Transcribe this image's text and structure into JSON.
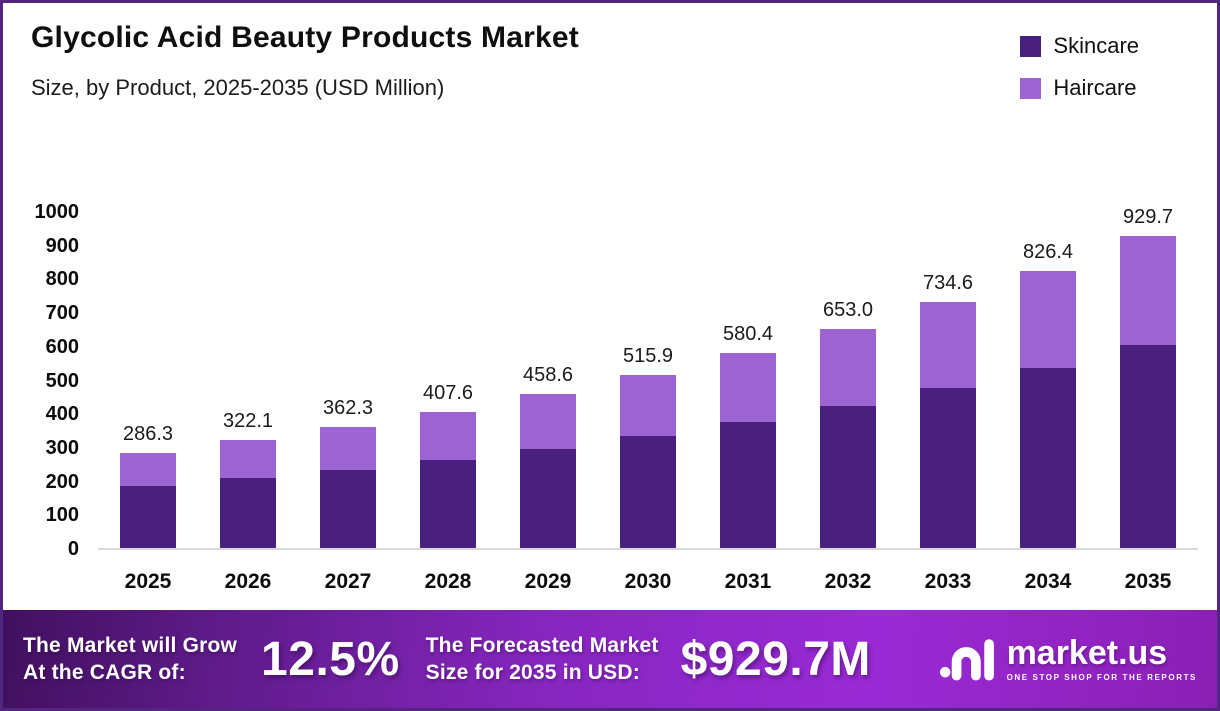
{
  "page": {
    "border_color": "#52257f",
    "background": "#ffffff"
  },
  "header": {
    "title": "Glycolic Acid Beauty Products Market",
    "subtitle": "Size, by Product, 2025-2035 (USD Million)"
  },
  "legend": {
    "position": "top-right",
    "items": [
      {
        "label": "Skincare",
        "color": "#49207e"
      },
      {
        "label": "Haircare",
        "color": "#9d63d3"
      }
    ]
  },
  "chart_data": {
    "type": "bar",
    "stacked": true,
    "title": "Glycolic Acid Beauty Products Market",
    "subtitle": "Size, by Product, 2025-2035 (USD Million)",
    "unit": "USD Million",
    "categories": [
      "2025",
      "2026",
      "2027",
      "2028",
      "2029",
      "2030",
      "2031",
      "2032",
      "2033",
      "2034",
      "2035"
    ],
    "series": [
      {
        "name": "Skincare",
        "color": "#49207e",
        "values": [
          186.1,
          209.4,
          235.5,
          264.9,
          298.1,
          335.3,
          377.3,
          424.5,
          477.5,
          537.2,
          604.3
        ]
      },
      {
        "name": "Haircare",
        "color": "#9d63d3",
        "values": [
          100.2,
          112.7,
          126.8,
          142.7,
          160.5,
          180.6,
          203.1,
          228.5,
          257.1,
          289.2,
          325.4
        ]
      }
    ],
    "totals": [
      286.3,
      322.1,
      362.3,
      407.6,
      458.6,
      515.9,
      580.4,
      653.0,
      734.6,
      826.4,
      929.7
    ],
    "total_labels": [
      "286.3",
      "322.1",
      "362.3",
      "407.6",
      "458.6",
      "515.9",
      "580.4",
      "653.0",
      "734.6",
      "826.4",
      "929.7"
    ],
    "xlabel": "",
    "ylabel": "",
    "ylim": [
      0,
      1000
    ],
    "yticks": [
      0,
      100,
      200,
      300,
      400,
      500,
      600,
      700,
      800,
      900,
      1000
    ],
    "grid": false,
    "legend_position": "top-right",
    "value_label_style": "total above each stacked bar"
  },
  "footer": {
    "growth_line1": "The Market will Grow",
    "growth_line2": "At the CAGR of:",
    "cagr": "12.5%",
    "forecast_line1": "The Forecasted Market",
    "forecast_line2": "Size for 2035 in USD:",
    "forecast_value": "$929.7M",
    "brand": "market.us",
    "brand_tagline": "ONE STOP SHOP FOR THE REPORTS"
  }
}
